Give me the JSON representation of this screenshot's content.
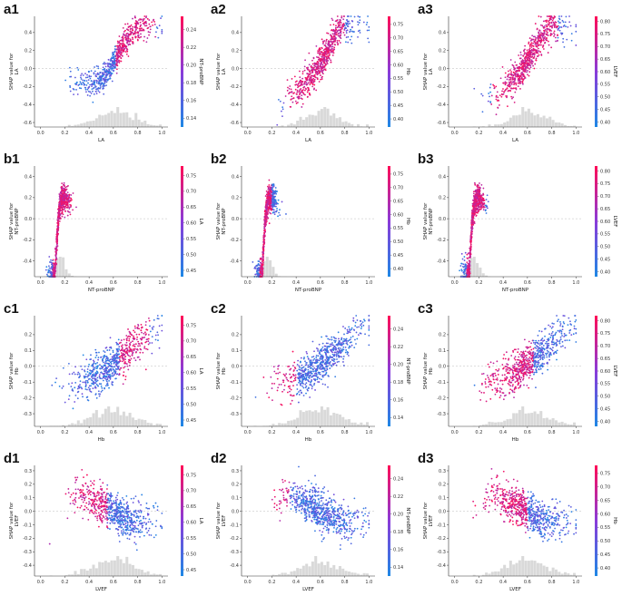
{
  "figure": {
    "colormap": {
      "low": "#1e88e5",
      "high": "#ff0d57"
    },
    "histogram_color": "#d9d9d9",
    "axis_color": "#333333"
  },
  "chart_data": [
    {
      "id": "a1",
      "type": "scatter",
      "xlabel": "LA",
      "ylabel": [
        "SHAP value for",
        "LA"
      ],
      "xticks": [
        0.0,
        0.2,
        0.4,
        0.6,
        0.8,
        1.0
      ],
      "yticks": [
        -0.6,
        -0.4,
        -0.2,
        0.0,
        0.2,
        0.4
      ],
      "xlim": [
        -0.05,
        1.05
      ],
      "ylim": [
        -0.65,
        0.58
      ],
      "color_feature": "NT-proBNP",
      "cbticks": [
        0.14,
        0.16,
        0.18,
        0.2,
        0.22,
        0.24
      ],
      "cblim": [
        0.13,
        0.255
      ],
      "curve": [
        [
          0.22,
          -0.14
        ],
        [
          0.3,
          -0.16
        ],
        [
          0.4,
          -0.18
        ],
        [
          0.5,
          -0.13
        ],
        [
          0.55,
          -0.04
        ],
        [
          0.6,
          0.06
        ],
        [
          0.65,
          0.18
        ],
        [
          0.7,
          0.3
        ],
        [
          0.75,
          0.4
        ],
        [
          0.8,
          0.45
        ],
        [
          0.85,
          0.48
        ],
        [
          0.9,
          0.47
        ]
      ],
      "spread": 0.07,
      "x_center": 0.62,
      "x_sd": 0.16,
      "low_x": [
        0.25,
        0.58
      ],
      "high_x": [
        0.62,
        0.95
      ]
    },
    {
      "id": "a2",
      "type": "scatter",
      "xlabel": "LA",
      "ylabel": [
        "SHAP value for",
        "LA"
      ],
      "xticks": [
        0.0,
        0.2,
        0.4,
        0.6,
        0.8,
        1.0
      ],
      "yticks": [
        -0.6,
        -0.4,
        -0.2,
        0.0,
        0.2,
        0.4
      ],
      "xlim": [
        -0.05,
        1.05
      ],
      "ylim": [
        -0.65,
        0.58
      ],
      "color_feature": "Hb",
      "cbticks": [
        0.4,
        0.45,
        0.5,
        0.55,
        0.6,
        0.65,
        0.7,
        0.75
      ],
      "cblim": [
        0.37,
        0.78
      ],
      "curve": [
        [
          0.3,
          -0.4
        ],
        [
          0.38,
          -0.3
        ],
        [
          0.45,
          -0.2
        ],
        [
          0.5,
          -0.12
        ],
        [
          0.55,
          -0.04
        ],
        [
          0.6,
          0.06
        ],
        [
          0.65,
          0.18
        ],
        [
          0.7,
          0.3
        ],
        [
          0.75,
          0.42
        ],
        [
          0.8,
          0.46
        ],
        [
          0.85,
          0.48
        ]
      ],
      "spread": 0.09,
      "x_center": 0.62,
      "x_sd": 0.14,
      "low_x": [
        0.8,
        1.0
      ],
      "high_x": [
        0.3,
        0.8
      ]
    },
    {
      "id": "a3",
      "type": "scatter",
      "xlabel": "LA",
      "ylabel": [
        "SHAP value for",
        "LA"
      ],
      "xticks": [
        0.0,
        0.2,
        0.4,
        0.6,
        0.8,
        1.0
      ],
      "yticks": [
        -0.6,
        -0.4,
        -0.2,
        0.0,
        0.2,
        0.4
      ],
      "xlim": [
        -0.05,
        1.05
      ],
      "ylim": [
        -0.65,
        0.58
      ],
      "color_feature": "LVEF",
      "cbticks": [
        0.4,
        0.45,
        0.5,
        0.55,
        0.6,
        0.65,
        0.7,
        0.75,
        0.8
      ],
      "cblim": [
        0.38,
        0.82
      ],
      "curve": [
        [
          0.3,
          -0.3
        ],
        [
          0.38,
          -0.25
        ],
        [
          0.45,
          -0.18
        ],
        [
          0.5,
          -0.1
        ],
        [
          0.55,
          -0.02
        ],
        [
          0.6,
          0.08
        ],
        [
          0.65,
          0.2
        ],
        [
          0.7,
          0.32
        ],
        [
          0.75,
          0.42
        ],
        [
          0.8,
          0.46
        ],
        [
          0.85,
          0.47
        ]
      ],
      "spread": 0.09,
      "x_center": 0.62,
      "x_sd": 0.14,
      "low_x": [
        0.85,
        1.0
      ],
      "high_x": [
        0.3,
        0.85
      ]
    },
    {
      "id": "b1",
      "type": "scatter",
      "xlabel": "NT-proBNP",
      "ylabel": [
        "SHAP value for",
        "NT-proBNP"
      ],
      "xticks": [
        0.0,
        0.2,
        0.4,
        0.6,
        0.8,
        1.0
      ],
      "yticks": [
        -0.4,
        -0.2,
        0.0,
        0.2,
        0.4
      ],
      "xlim": [
        -0.05,
        1.05
      ],
      "ylim": [
        -0.55,
        0.5
      ],
      "color_feature": "LA",
      "cbticks": [
        0.45,
        0.5,
        0.55,
        0.6,
        0.65,
        0.7,
        0.75
      ],
      "cblim": [
        0.43,
        0.78
      ],
      "curve": [
        [
          0.12,
          -0.5
        ],
        [
          0.13,
          -0.3
        ],
        [
          0.14,
          -0.1
        ],
        [
          0.15,
          0.05
        ],
        [
          0.17,
          0.18
        ],
        [
          0.2,
          0.2
        ],
        [
          0.3,
          0.08
        ],
        [
          0.5,
          0.03
        ],
        [
          0.8,
          0.03
        ],
        [
          1.0,
          0.2
        ]
      ],
      "spread": 0.06,
      "x_center": 0.16,
      "x_sd": 0.04,
      "low_x": [
        0.3,
        0.7
      ],
      "high_x": [
        0.1,
        0.3
      ]
    },
    {
      "id": "b2",
      "type": "scatter",
      "xlabel": "NT-proBNP",
      "ylabel": [
        "SHAP value for",
        "NT-proBNP"
      ],
      "xticks": [
        0.0,
        0.2,
        0.4,
        0.6,
        0.8,
        1.0
      ],
      "yticks": [
        -0.4,
        -0.2,
        0.0,
        0.2,
        0.4
      ],
      "xlim": [
        -0.05,
        1.05
      ],
      "ylim": [
        -0.55,
        0.5
      ],
      "color_feature": "Hb",
      "cbticks": [
        0.4,
        0.45,
        0.5,
        0.55,
        0.6,
        0.65,
        0.7,
        0.75
      ],
      "cblim": [
        0.37,
        0.78
      ],
      "curve": [
        [
          0.12,
          -0.5
        ],
        [
          0.13,
          -0.3
        ],
        [
          0.14,
          -0.1
        ],
        [
          0.15,
          0.05
        ],
        [
          0.17,
          0.18
        ],
        [
          0.2,
          0.2
        ],
        [
          0.3,
          0.08
        ],
        [
          0.5,
          0.03
        ],
        [
          0.8,
          0.03
        ],
        [
          1.0,
          0.2
        ]
      ],
      "spread": 0.06,
      "x_center": 0.16,
      "x_sd": 0.04,
      "low_x": [
        0.2,
        1.0
      ],
      "high_x": [
        0.1,
        0.2
      ]
    },
    {
      "id": "b3",
      "type": "scatter",
      "xlabel": "NT-proBNP",
      "ylabel": [
        "SHAP value for",
        "NT-proBNP"
      ],
      "xticks": [
        0.0,
        0.2,
        0.4,
        0.6,
        0.8,
        1.0
      ],
      "yticks": [
        -0.4,
        -0.2,
        0.0,
        0.2,
        0.4
      ],
      "xlim": [
        -0.05,
        1.05
      ],
      "ylim": [
        -0.55,
        0.5
      ],
      "color_feature": "LVEF",
      "cbticks": [
        0.4,
        0.45,
        0.5,
        0.55,
        0.6,
        0.65,
        0.7,
        0.75,
        0.8
      ],
      "cblim": [
        0.38,
        0.82
      ],
      "curve": [
        [
          0.12,
          -0.5
        ],
        [
          0.13,
          -0.3
        ],
        [
          0.14,
          -0.1
        ],
        [
          0.15,
          0.05
        ],
        [
          0.17,
          0.18
        ],
        [
          0.2,
          0.2
        ],
        [
          0.3,
          0.08
        ],
        [
          0.5,
          0.03
        ],
        [
          0.8,
          0.03
        ],
        [
          1.0,
          0.2
        ]
      ],
      "spread": 0.06,
      "x_center": 0.16,
      "x_sd": 0.04,
      "low_x": [
        0.25,
        1.0
      ],
      "high_x": [
        0.1,
        0.25
      ]
    },
    {
      "id": "c1",
      "type": "scatter",
      "xlabel": "Hb",
      "ylabel": [
        "SHAP value for",
        "Hb"
      ],
      "xticks": [
        0.0,
        0.2,
        0.4,
        0.6,
        0.8,
        1.0
      ],
      "yticks": [
        -0.3,
        -0.2,
        -0.1,
        0.0,
        0.1,
        0.2
      ],
      "xlim": [
        -0.05,
        1.05
      ],
      "ylim": [
        -0.38,
        0.32
      ],
      "color_feature": "LA",
      "cbticks": [
        0.45,
        0.5,
        0.55,
        0.6,
        0.65,
        0.7,
        0.75
      ],
      "cblim": [
        0.43,
        0.78
      ],
      "curve": [
        [
          0.1,
          -0.15
        ],
        [
          0.2,
          -0.12
        ],
        [
          0.3,
          -0.1
        ],
        [
          0.4,
          -0.08
        ],
        [
          0.5,
          -0.04
        ],
        [
          0.6,
          0.02
        ],
        [
          0.7,
          0.08
        ],
        [
          0.8,
          0.15
        ],
        [
          0.9,
          0.22
        ],
        [
          1.0,
          0.25
        ]
      ],
      "spread": 0.06,
      "x_center": 0.6,
      "x_sd": 0.17,
      "low_x": [
        0.45,
        0.65
      ],
      "high_x": [
        0.65,
        0.9
      ]
    },
    {
      "id": "c2",
      "type": "scatter",
      "xlabel": "Hb",
      "ylabel": [
        "SHAP value for",
        "Hb"
      ],
      "xticks": [
        0.0,
        0.2,
        0.4,
        0.6,
        0.8,
        1.0
      ],
      "yticks": [
        -0.3,
        -0.2,
        -0.1,
        0.0,
        0.1,
        0.2
      ],
      "xlim": [
        -0.05,
        1.05
      ],
      "ylim": [
        -0.38,
        0.32
      ],
      "color_feature": "NT-proBNP",
      "cbticks": [
        0.14,
        0.16,
        0.18,
        0.2,
        0.22,
        0.24
      ],
      "cblim": [
        0.13,
        0.255
      ],
      "curve": [
        [
          0.1,
          -0.15
        ],
        [
          0.2,
          -0.12
        ],
        [
          0.3,
          -0.1
        ],
        [
          0.4,
          -0.08
        ],
        [
          0.5,
          -0.04
        ],
        [
          0.6,
          0.02
        ],
        [
          0.7,
          0.08
        ],
        [
          0.8,
          0.15
        ],
        [
          0.9,
          0.22
        ],
        [
          1.0,
          0.25
        ]
      ],
      "spread": 0.06,
      "x_center": 0.6,
      "x_sd": 0.17,
      "low_x": [
        0.4,
        1.0
      ],
      "high_x": [
        0.1,
        0.4
      ]
    },
    {
      "id": "c3",
      "type": "scatter",
      "xlabel": "Hb",
      "ylabel": [
        "SHAP value for",
        "Hb"
      ],
      "xticks": [
        0.0,
        0.2,
        0.4,
        0.6,
        0.8,
        1.0
      ],
      "yticks": [
        -0.3,
        -0.2,
        -0.1,
        0.0,
        0.1,
        0.2
      ],
      "xlim": [
        -0.05,
        1.05
      ],
      "ylim": [
        -0.38,
        0.32
      ],
      "color_feature": "LVEF",
      "cbticks": [
        0.4,
        0.45,
        0.5,
        0.55,
        0.6,
        0.65,
        0.7,
        0.75,
        0.8
      ],
      "cblim": [
        0.38,
        0.82
      ],
      "curve": [
        [
          0.1,
          -0.15
        ],
        [
          0.2,
          -0.12
        ],
        [
          0.3,
          -0.1
        ],
        [
          0.4,
          -0.08
        ],
        [
          0.5,
          -0.04
        ],
        [
          0.6,
          0.02
        ],
        [
          0.7,
          0.08
        ],
        [
          0.8,
          0.15
        ],
        [
          0.9,
          0.22
        ],
        [
          1.0,
          0.25
        ]
      ],
      "spread": 0.06,
      "x_center": 0.6,
      "x_sd": 0.17,
      "low_x": [
        0.65,
        0.95
      ],
      "high_x": [
        0.2,
        0.65
      ]
    },
    {
      "id": "d1",
      "type": "scatter",
      "xlabel": "LVEF",
      "ylabel": [
        "SHAP value for",
        "LVEF"
      ],
      "xticks": [
        0.0,
        0.2,
        0.4,
        0.6,
        0.8,
        1.0
      ],
      "yticks": [
        -0.4,
        -0.3,
        -0.2,
        -0.1,
        0.0,
        0.1,
        0.2,
        0.3
      ],
      "xlim": [
        -0.05,
        1.05
      ],
      "ylim": [
        -0.48,
        0.34
      ],
      "color_feature": "LA",
      "cbticks": [
        0.45,
        0.5,
        0.55,
        0.6,
        0.65,
        0.7,
        0.75
      ],
      "cblim": [
        0.43,
        0.78
      ],
      "curve": [
        [
          0.02,
          -0.35
        ],
        [
          0.1,
          -0.1
        ],
        [
          0.2,
          0.05
        ],
        [
          0.3,
          0.12
        ],
        [
          0.4,
          0.1
        ],
        [
          0.5,
          0.05
        ],
        [
          0.6,
          0.0
        ],
        [
          0.7,
          -0.05
        ],
        [
          0.8,
          -0.08
        ]
      ],
      "spread": 0.07,
      "x_center": 0.6,
      "x_sd": 0.16,
      "low_x": [
        0.55,
        0.85
      ],
      "high_x": [
        0.0,
        0.55
      ]
    },
    {
      "id": "d2",
      "type": "scatter",
      "xlabel": "LVEF",
      "ylabel": [
        "SHAP value for",
        "LVEF"
      ],
      "xticks": [
        0.0,
        0.2,
        0.4,
        0.6,
        0.8,
        1.0
      ],
      "yticks": [
        -0.4,
        -0.3,
        -0.2,
        -0.1,
        0.0,
        0.1,
        0.2,
        0.3
      ],
      "xlim": [
        -0.05,
        1.05
      ],
      "ylim": [
        -0.48,
        0.34
      ],
      "color_feature": "NT-proBNP",
      "cbticks": [
        0.14,
        0.16,
        0.18,
        0.2,
        0.22,
        0.24
      ],
      "cblim": [
        0.13,
        0.255
      ],
      "curve": [
        [
          0.02,
          -0.35
        ],
        [
          0.1,
          -0.1
        ],
        [
          0.2,
          0.05
        ],
        [
          0.3,
          0.12
        ],
        [
          0.4,
          0.1
        ],
        [
          0.5,
          0.05
        ],
        [
          0.6,
          0.0
        ],
        [
          0.7,
          -0.05
        ],
        [
          0.8,
          -0.08
        ]
      ],
      "spread": 0.07,
      "x_center": 0.6,
      "x_sd": 0.16,
      "low_x": [
        0.35,
        0.85
      ],
      "high_x": [
        0.0,
        0.35
      ]
    },
    {
      "id": "d3",
      "type": "scatter",
      "xlabel": "LVEF",
      "ylabel": [
        "SHAP value for",
        "LVEF"
      ],
      "xticks": [
        0.0,
        0.2,
        0.4,
        0.6,
        0.8,
        1.0
      ],
      "yticks": [
        -0.4,
        -0.3,
        -0.2,
        -0.1,
        0.0,
        0.1,
        0.2,
        0.3
      ],
      "xlim": [
        -0.05,
        1.05
      ],
      "ylim": [
        -0.48,
        0.34
      ],
      "color_feature": "Hb",
      "cbticks": [
        0.4,
        0.45,
        0.5,
        0.55,
        0.6,
        0.65,
        0.7,
        0.75
      ],
      "cblim": [
        0.37,
        0.78
      ],
      "curve": [
        [
          0.02,
          -0.35
        ],
        [
          0.1,
          -0.1
        ],
        [
          0.2,
          0.05
        ],
        [
          0.3,
          0.12
        ],
        [
          0.4,
          0.1
        ],
        [
          0.5,
          0.05
        ],
        [
          0.6,
          0.0
        ],
        [
          0.7,
          -0.05
        ],
        [
          0.8,
          -0.08
        ]
      ],
      "spread": 0.07,
      "x_center": 0.6,
      "x_sd": 0.16,
      "low_x": [
        0.6,
        0.85
      ],
      "high_x": [
        0.0,
        0.6
      ]
    }
  ]
}
